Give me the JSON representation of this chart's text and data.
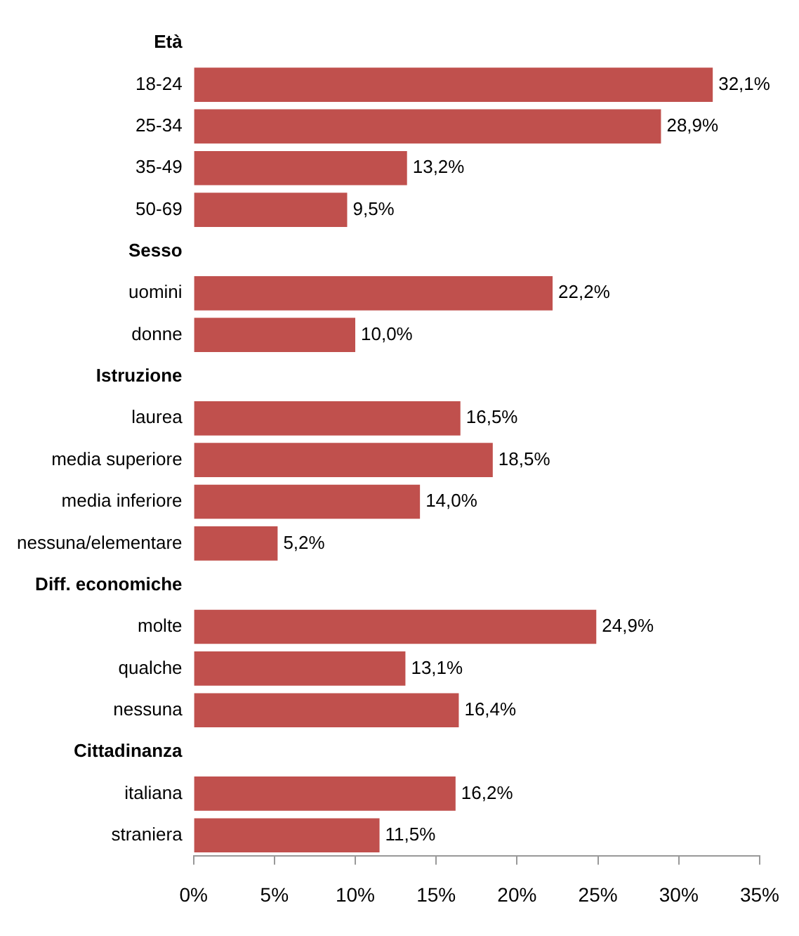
{
  "chart_data": {
    "type": "bar",
    "orientation": "horizontal",
    "categories": [
      "Età",
      "18-24",
      "25-34",
      "35-49",
      "50-69",
      "Sesso",
      "uomini",
      "donne",
      "Istruzione",
      "laurea",
      "media superiore",
      "media inferiore",
      "nessuna/elementare",
      "Diff. economiche",
      "molte",
      "qualche",
      "nessuna",
      "Cittadinanza",
      "italiana",
      "straniera"
    ],
    "values": [
      null,
      32.1,
      28.9,
      13.2,
      9.5,
      null,
      22.2,
      10.0,
      null,
      16.5,
      18.5,
      14.0,
      5.2,
      null,
      24.9,
      13.1,
      16.4,
      null,
      16.2,
      11.5
    ],
    "value_labels": [
      null,
      "32,1%",
      "28,9%",
      "13,2%",
      "9,5%",
      null,
      "22,2%",
      "10,0%",
      null,
      "16,5%",
      "18,5%",
      "14,0%",
      "5,2%",
      null,
      "24,9%",
      "13,1%",
      "16,4%",
      null,
      "16,2%",
      "11,5%"
    ],
    "color": "#c0504d",
    "xlim": [
      0,
      35
    ],
    "xticks": [
      {
        "value": 0,
        "label": "0%"
      },
      {
        "value": 5,
        "label": "5%"
      },
      {
        "value": 10,
        "label": "10%"
      },
      {
        "value": 15,
        "label": "15%"
      },
      {
        "value": 20,
        "label": "20%"
      },
      {
        "value": 25,
        "label": "25%"
      },
      {
        "value": 30,
        "label": "30%"
      },
      {
        "value": 35,
        "label": "35%"
      }
    ],
    "grid": false,
    "legend": false
  }
}
